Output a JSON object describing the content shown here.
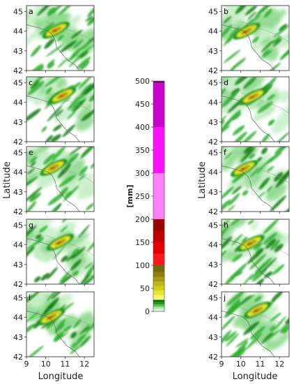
{
  "chart_data": {
    "type": "heatmap",
    "panels": [
      {
        "label": "a",
        "column": "left"
      },
      {
        "label": "b",
        "column": "right"
      },
      {
        "label": "c",
        "column": "left"
      },
      {
        "label": "d",
        "column": "right"
      },
      {
        "label": "e",
        "column": "left"
      },
      {
        "label": "f",
        "column": "right"
      },
      {
        "label": "g",
        "column": "left"
      },
      {
        "label": "h",
        "column": "right"
      },
      {
        "label": "i",
        "column": "left"
      },
      {
        "label": "j",
        "column": "right"
      }
    ],
    "xlabel": "Longitude",
    "ylabel": "Latitude",
    "xlim": [
      9,
      12.5
    ],
    "ylim": [
      42,
      45.3
    ],
    "xticks": [
      "9",
      "10",
      "11",
      "12"
    ],
    "yticks": [
      "42",
      "43",
      "44",
      "45"
    ],
    "colorbar": {
      "unit": "[mm]",
      "range": [
        0,
        500
      ],
      "ticks": [
        "0",
        "50",
        "100",
        "150",
        "200",
        "250",
        "300",
        "350",
        "400",
        "450",
        "500"
      ],
      "bins": [
        {
          "from": 0,
          "to": 5,
          "color": "#d9f7d9"
        },
        {
          "from": 5,
          "to": 10,
          "color": "#a6e8a6"
        },
        {
          "from": 10,
          "to": 15,
          "color": "#56c256"
        },
        {
          "from": 15,
          "to": 20,
          "color": "#1f9a1f"
        },
        {
          "from": 20,
          "to": 25,
          "color": "#0a6b0a"
        },
        {
          "from": 25,
          "to": 35,
          "color": "#f5f76e"
        },
        {
          "from": 35,
          "to": 45,
          "color": "#e6e62a"
        },
        {
          "from": 45,
          "to": 55,
          "color": "#d4cf12"
        },
        {
          "from": 55,
          "to": 65,
          "color": "#bfb514"
        },
        {
          "from": 65,
          "to": 75,
          "color": "#a89a10"
        },
        {
          "from": 75,
          "to": 85,
          "color": "#8f800c"
        },
        {
          "from": 85,
          "to": 100,
          "color": "#756a0a"
        },
        {
          "from": 100,
          "to": 125,
          "color": "#ff1a1a"
        },
        {
          "from": 125,
          "to": 150,
          "color": "#e60000"
        },
        {
          "from": 150,
          "to": 175,
          "color": "#c00000"
        },
        {
          "from": 175,
          "to": 200,
          "color": "#990000"
        },
        {
          "from": 200,
          "to": 300,
          "color": "#ff80ff"
        },
        {
          "from": 300,
          "to": 400,
          "color": "#ff10ff"
        },
        {
          "from": 400,
          "to": 495,
          "color": "#cc00cc"
        },
        {
          "from": 495,
          "to": 500,
          "color": "#7a0a7a"
        }
      ]
    }
  }
}
